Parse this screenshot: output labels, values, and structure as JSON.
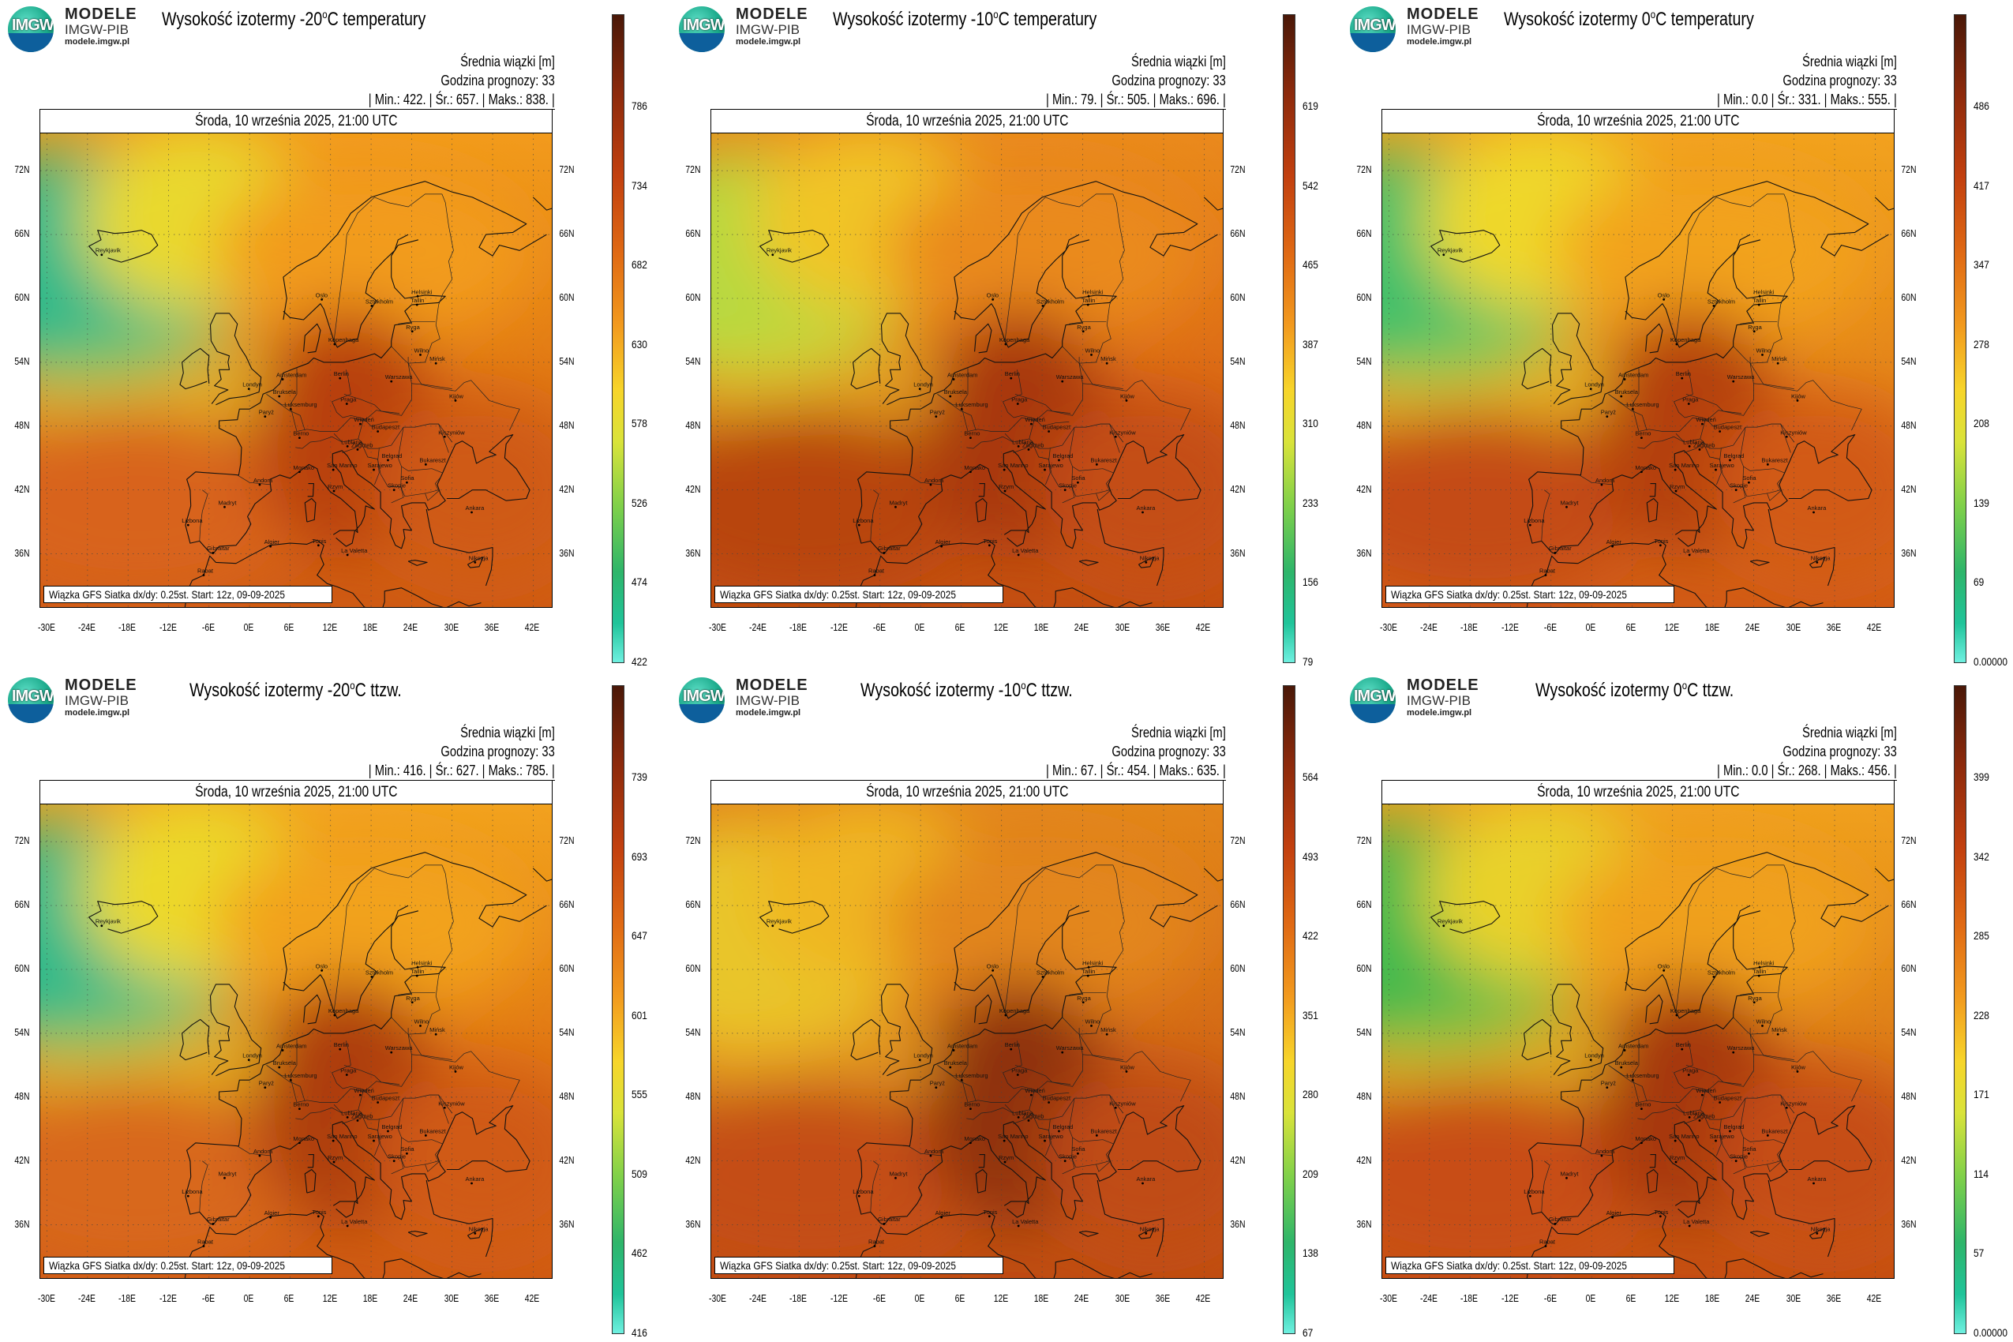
{
  "logo": {
    "mark": "IMGW",
    "line1": "MODELE",
    "line2": "IMGW-PIB",
    "line3": "modele.imgw.pl"
  },
  "common": {
    "legend_title": "Średnia wiązki [m]",
    "forecast_hour": "Godzina prognozy: 33",
    "date_line": "Środa, 10 września 2025, 21:00 UTC",
    "footer": "Wiązka GFS Siatka dx/dy: 0.25st. Start: 12z, 09-09-2025",
    "lat_labels": [
      "72N",
      "66N",
      "60N",
      "54N",
      "48N",
      "42N",
      "36N"
    ],
    "lon_labels": [
      "-30E",
      "-24E",
      "-18E",
      "-12E",
      "-6E",
      "0E",
      "6E",
      "12E",
      "18E",
      "24E",
      "30E",
      "36E",
      "42E"
    ]
  },
  "map_places": [
    "Oslo",
    "Sztokholm",
    "Helsinki",
    "Tallin",
    "Ryga",
    "Wilno",
    "Mińsk",
    "Kopenhaga",
    "Londyn",
    "Amsterdam",
    "Bruksela",
    "Luksemburg",
    "Paryż",
    "Berlin",
    "Praga",
    "Warszawa",
    "Kijów",
    "Wiedeń",
    "Budapeszt",
    "Berno",
    "Lublana",
    "Zagrzeb",
    "Bukareszt",
    "Kiszyniów",
    "Belgrad",
    "Sarajewo",
    "Sofia",
    "Monako",
    "San Marino",
    "Andora",
    "Madryt",
    "Lizbona",
    "Rzym",
    "Skopje",
    "Ankara",
    "Gibraltar",
    "Algier",
    "Tunis",
    "La Valetta",
    "Rabat",
    "Nikozja",
    "Reykjavik"
  ],
  "panels": [
    {
      "title_pre": "Wysokość izotermy -20",
      "title_post": "C temperatury",
      "stats": "| Min.: 422. | Śr.: 657. | Maks.: 838. |",
      "colorbar_ticks": [
        "786",
        "734",
        "682",
        "630",
        "578",
        "526",
        "474",
        "422"
      ],
      "colors": {
        "nw": "#2fb98a",
        "w": "#e9d92f",
        "c": "#f29b1c",
        "e": "#e27a14",
        "s": "#cf5a14",
        "sw": "#d8641a",
        "hot": "#b8400f"
      }
    },
    {
      "title_pre": "Wysokość izotermy -10",
      "title_post": "C temperatury",
      "stats": "| Min.: 79. | Śr.: 505. | Maks.: 696. |",
      "colorbar_ticks": [
        "619",
        "542",
        "465",
        "387",
        "310",
        "233",
        "156",
        "79"
      ],
      "colors": {
        "nw": "#b8d940",
        "w": "#f1c528",
        "c": "#ea8a1c",
        "e": "#dd6c16",
        "s": "#c44e12",
        "sw": "#b8440f",
        "hot": "#a8380e"
      }
    },
    {
      "title_pre": "Wysokość izotermy 0",
      "title_post": "C temperatury",
      "stats": "| Min.: 0.0 | Śr.: 331. | Maks.: 555. |",
      "colorbar_ticks": [
        "486",
        "417",
        "347",
        "278",
        "208",
        "139",
        "69",
        "0.00000"
      ],
      "colors": {
        "nw": "#3fc06a",
        "w": "#efd82a",
        "c": "#f2a21e",
        "e": "#e5861a",
        "s": "#d25a16",
        "sw": "#c44c12",
        "hot": "#b4400f"
      }
    },
    {
      "title_pre": "Wysokość izotermy -20",
      "title_post": "C ttzw.",
      "stats": "| Min.: 416. | Śr.: 627. | Maks.: 785. |",
      "colorbar_ticks": [
        "739",
        "693",
        "647",
        "601",
        "555",
        "509",
        "462",
        "416"
      ],
      "colors": {
        "nw": "#2fb98a",
        "w": "#ecd92c",
        "c": "#f2a21e",
        "e": "#e27a14",
        "s": "#d05a14",
        "sw": "#d8681a",
        "hot": "#ad3e10"
      }
    },
    {
      "title_pre": "Wysokość izotermy -10",
      "title_post": "C ttzw.",
      "stats": "| Min.: 67. | Śr.: 454. | Maks.: 635. |",
      "colorbar_ticks": [
        "564",
        "493",
        "422",
        "351",
        "280",
        "209",
        "138",
        "67"
      ],
      "colors": {
        "nw": "#e8c62a",
        "w": "#f0b624",
        "c": "#e3861a",
        "e": "#d46a16",
        "s": "#c04c12",
        "sw": "#c44e12",
        "hot": "#8f3210"
      }
    },
    {
      "title_pre": "Wysokość izotermy 0",
      "title_post": "C ttzw.",
      "stats": "| Min.: 0.0 | Śr.: 268. | Maks.: 456. |",
      "colorbar_ticks": [
        "399",
        "342",
        "285",
        "228",
        "171",
        "114",
        "57",
        "0.00000"
      ],
      "colors": {
        "nw": "#42b94e",
        "w": "#e9d22c",
        "c": "#f0a01e",
        "e": "#de7e18",
        "s": "#c64e12",
        "sw": "#c84e14",
        "hot": "#a6380e"
      }
    }
  ]
}
